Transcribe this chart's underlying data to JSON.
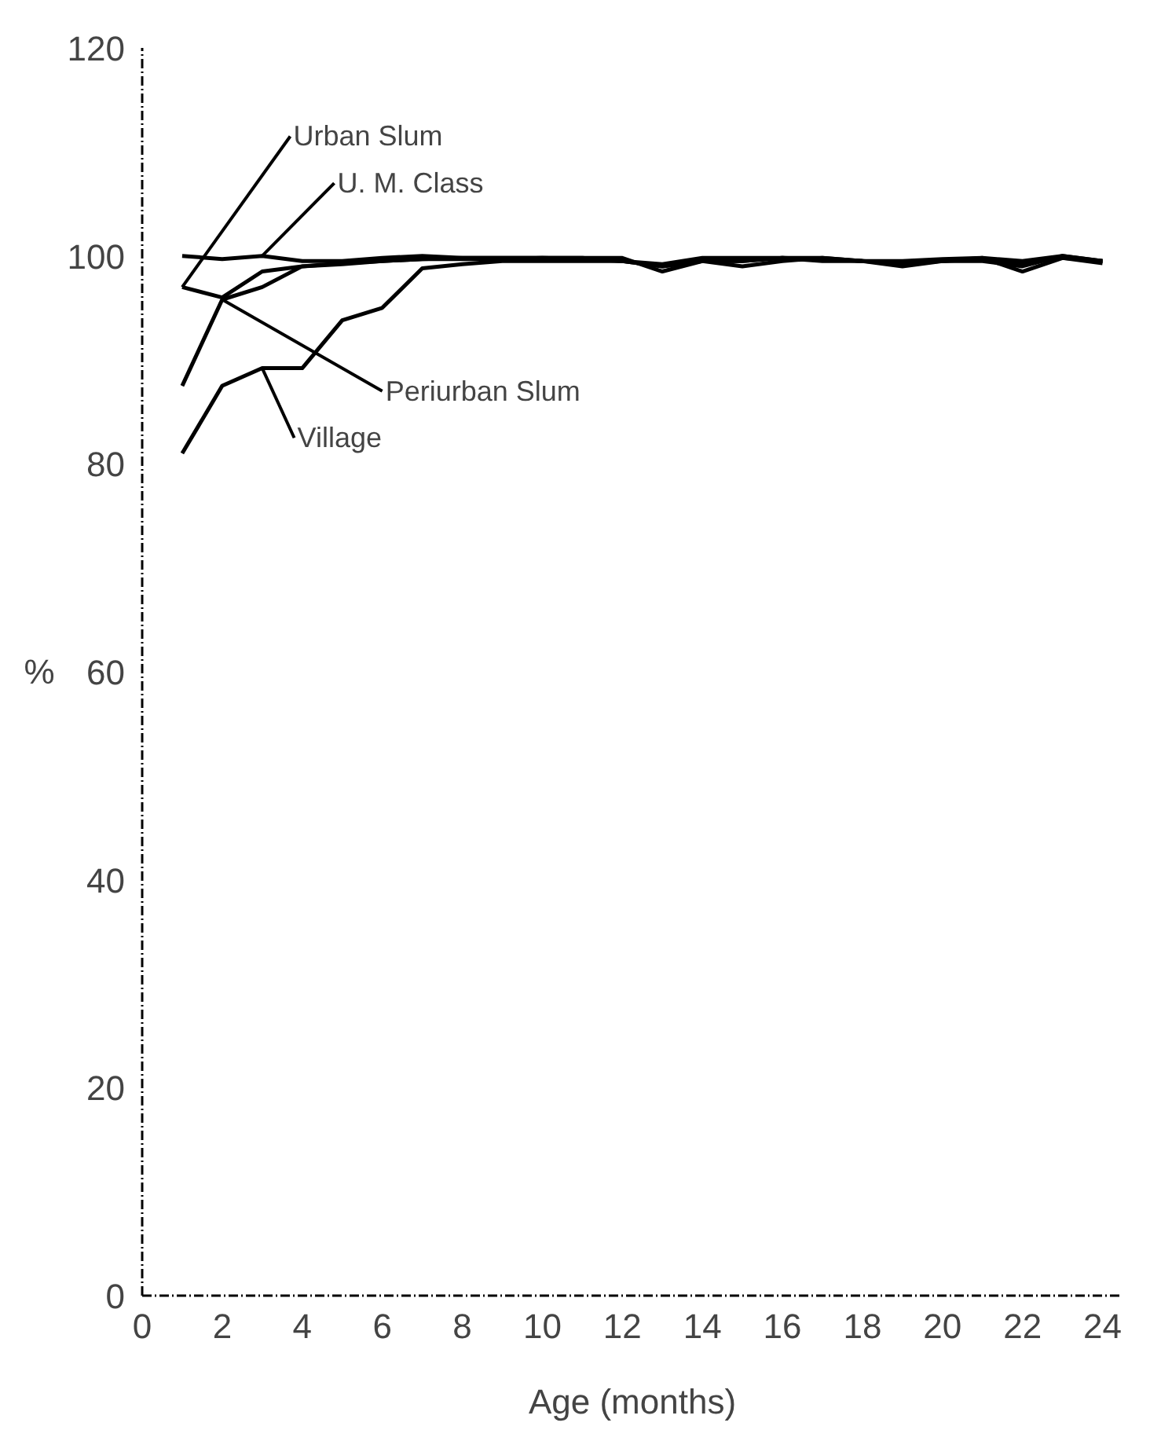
{
  "chart_data": {
    "type": "line",
    "xlabel": "Age (months)",
    "ylabel": "%",
    "x": [
      1,
      2,
      3,
      4,
      5,
      6,
      7,
      8,
      9,
      10,
      11,
      12,
      13,
      14,
      15,
      16,
      17,
      18,
      19,
      20,
      21,
      22,
      23,
      24
    ],
    "series": [
      {
        "name": "Urban Slum",
        "color": "#000000",
        "values": [
          97,
          96,
          98.5,
          99,
          99.3,
          99.5,
          99.7,
          99.8,
          99.8,
          99.8,
          99.8,
          99.8,
          98.5,
          99.5,
          99.5,
          99.8,
          99.8,
          99.5,
          99,
          99.5,
          99.8,
          99.5,
          100,
          99.5
        ]
      },
      {
        "name": "U. M. Class",
        "color": "#000000",
        "values": [
          100,
          99.7,
          100,
          99.5,
          99.5,
          99.8,
          100,
          99.8,
          99.8,
          99.8,
          99.7,
          99.5,
          99,
          99.5,
          99,
          99.5,
          99.8,
          99.5,
          99.3,
          99.5,
          99.5,
          99,
          100,
          99.5
        ]
      },
      {
        "name": "Periurban Slum",
        "color": "#000000",
        "values": [
          87.5,
          95.8,
          97,
          99,
          99.2,
          99.5,
          99.7,
          99.7,
          99.7,
          99.8,
          99.8,
          99.5,
          99.2,
          99.8,
          99.8,
          99.8,
          99.7,
          99.5,
          99.5,
          99.7,
          99.8,
          98.5,
          99.8,
          99.5
        ]
      },
      {
        "name": "Village",
        "color": "#000000",
        "values": [
          81,
          87.5,
          89.2,
          89.2,
          93.8,
          95,
          98.8,
          99.2,
          99.5,
          99.5,
          99.5,
          99.5,
          99,
          99.5,
          99.5,
          99.8,
          99.5,
          99.5,
          99.3,
          99.5,
          99.7,
          99.3,
          99.8,
          99.3
        ]
      }
    ],
    "xlim": [
      0,
      24.5
    ],
    "ylim": [
      0,
      120
    ],
    "xticks": [
      0,
      2,
      4,
      6,
      8,
      10,
      12,
      14,
      16,
      18,
      20,
      22,
      24
    ],
    "yticks": [
      0,
      20,
      40,
      60,
      80,
      100,
      120
    ],
    "grid": false,
    "line_style": "solid",
    "marker": "none"
  }
}
